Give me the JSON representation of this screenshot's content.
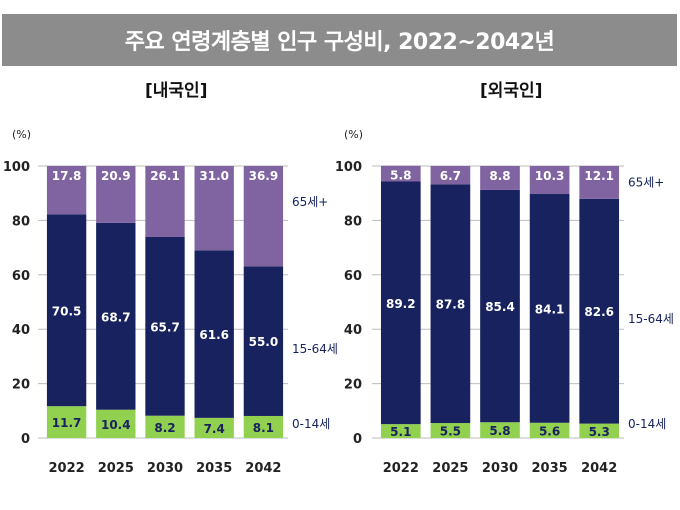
{
  "title": "주요 연령계층별 인구 구성비, 2022~2042년",
  "colors": {
    "young": "#92d050",
    "working": "#17225e",
    "elderly": "#8064a2",
    "banner": "#8c8c8c"
  },
  "chart_data": [
    {
      "type": "bar",
      "stacked": true,
      "title": "[내국인]",
      "ylabel": "(%)",
      "ylim": [
        0,
        100
      ],
      "yticks": [
        0,
        20,
        40,
        60,
        80,
        100
      ],
      "categories": [
        "2022",
        "2025",
        "2030",
        "2035",
        "2042"
      ],
      "series": [
        {
          "name": "0-14세",
          "values": [
            11.7,
            10.4,
            8.2,
            7.4,
            8.1
          ]
        },
        {
          "name": "15-64세",
          "values": [
            70.5,
            68.7,
            65.7,
            61.6,
            55.0
          ]
        },
        {
          "name": "65세+",
          "values": [
            17.8,
            20.9,
            26.1,
            31.0,
            36.9
          ]
        }
      ]
    },
    {
      "type": "bar",
      "stacked": true,
      "title": "[외국인]",
      "ylabel": "(%)",
      "ylim": [
        0,
        100
      ],
      "yticks": [
        0,
        20,
        40,
        60,
        80,
        100
      ],
      "categories": [
        "2022",
        "2025",
        "2030",
        "2035",
        "2042"
      ],
      "series": [
        {
          "name": "0-14세",
          "values": [
            5.1,
            5.5,
            5.8,
            5.6,
            5.3
          ]
        },
        {
          "name": "15-64세",
          "values": [
            89.2,
            87.8,
            85.4,
            84.1,
            82.6
          ]
        },
        {
          "name": "65세+",
          "values": [
            5.8,
            6.7,
            8.8,
            10.3,
            12.1
          ]
        }
      ]
    }
  ]
}
